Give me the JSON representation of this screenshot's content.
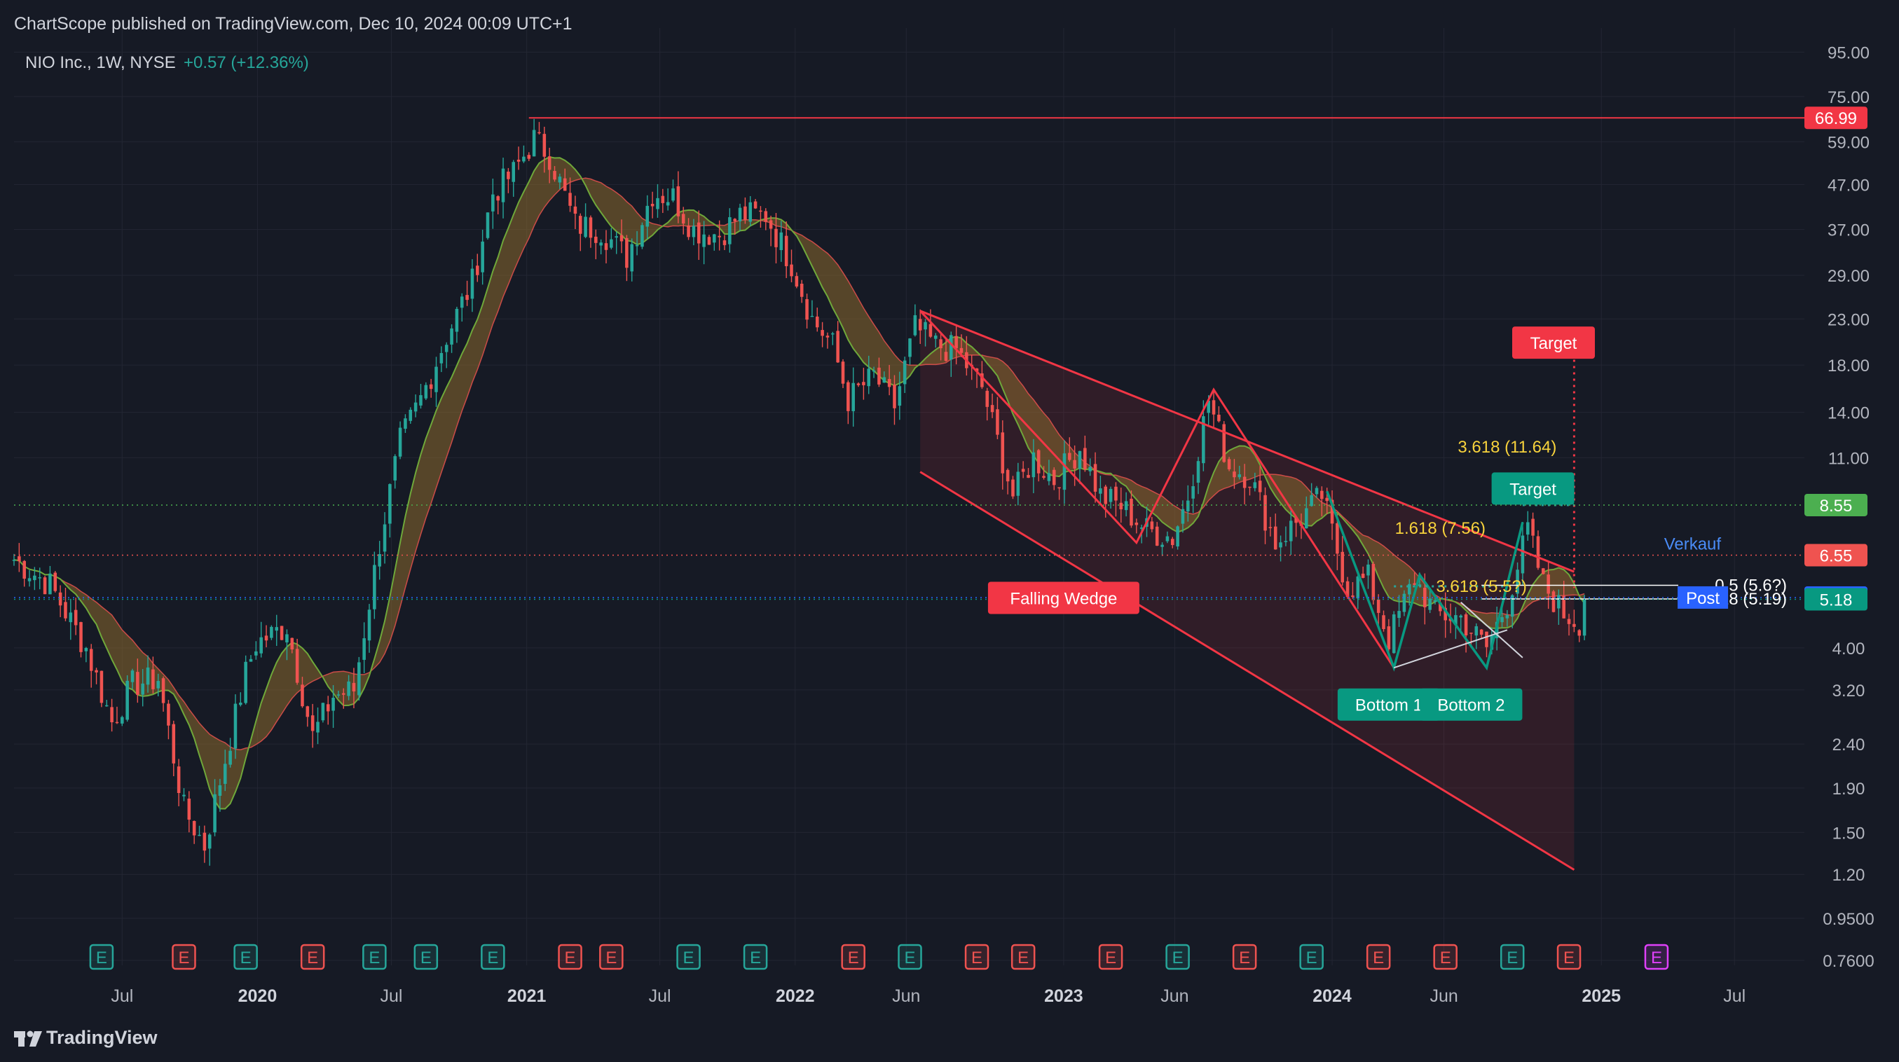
{
  "header": {
    "publisher": "ChartScope published on TradingView.com, Dec 10, 2024 00:09 UTC+1",
    "symbol": "NIO Inc., 1W, NYSE",
    "change": "+0.57 (+12.36%)"
  },
  "footer": {
    "brand": "TradingView"
  },
  "colors": {
    "background": "#161a25",
    "up": "#26a69a",
    "down": "#ef5350",
    "wedge": "#f23645",
    "green_label": "#089981",
    "fib_yellow": "#f7d23c",
    "blue": "#2962ff",
    "grid": "#232633"
  },
  "chart_data": {
    "type": "candlestick",
    "x_axis": {
      "tick_labels": [
        "Jul",
        "2020",
        "Jul",
        "2021",
        "Jul",
        "2022",
        "Jun",
        "2023",
        "Jun",
        "2024",
        "Jun",
        "2025",
        "Jul"
      ],
      "tick_dates": [
        "2019-07-01",
        "2020-01-01",
        "2020-07-01",
        "2021-01-01",
        "2021-07-01",
        "2022-01-01",
        "2022-06-01",
        "2023-01-01",
        "2023-06-01",
        "2024-01-01",
        "2024-06-01",
        "2025-01-01",
        "2025-07-01"
      ],
      "range": [
        "2019-02-04",
        "2025-09-15"
      ]
    },
    "y_axis": {
      "scale": "log",
      "ylim": [
        0.74,
        108
      ],
      "tick_labels": [
        "95.00",
        "75.00",
        "59.00",
        "47.00",
        "37.00",
        "29.00",
        "23.00",
        "18.00",
        "14.00",
        "11.00",
        "4.00",
        "3.20",
        "2.40",
        "1.90",
        "1.50",
        "1.20",
        "0.9500",
        "0.7600"
      ]
    },
    "price_series": {
      "name": "NIO Inc., 1W, NYSE",
      "anchors": [
        [
          "2019-02-04",
          6.4
        ],
        [
          "2019-03-25",
          5.6
        ],
        [
          "2019-05-13",
          4.0
        ],
        [
          "2019-06-17",
          2.7
        ],
        [
          "2019-07-15",
          3.3
        ],
        [
          "2019-08-19",
          3.4
        ],
        [
          "2019-09-23",
          1.7
        ],
        [
          "2019-10-21",
          1.4
        ],
        [
          "2019-12-16",
          3.5
        ],
        [
          "2019-12-30",
          4.1
        ],
        [
          "2020-02-10",
          4.5
        ],
        [
          "2020-03-16",
          2.5
        ],
        [
          "2020-04-13",
          3.1
        ],
        [
          "2020-05-11",
          3.2
        ],
        [
          "2020-06-15",
          7.0
        ],
        [
          "2020-07-13",
          12.0
        ],
        [
          "2020-08-10",
          15.0
        ],
        [
          "2020-09-14",
          21.0
        ],
        [
          "2020-10-19",
          28.0
        ],
        [
          "2020-11-16",
          45.0
        ],
        [
          "2020-12-14",
          50.0
        ],
        [
          "2021-01-11",
          60.0
        ],
        [
          "2021-02-01",
          55.0
        ],
        [
          "2021-03-08",
          38.0
        ],
        [
          "2021-04-12",
          37.0
        ],
        [
          "2021-05-17",
          32.0
        ],
        [
          "2021-06-21",
          45.0
        ],
        [
          "2021-07-19",
          44.0
        ],
        [
          "2021-08-16",
          37.0
        ],
        [
          "2021-09-20",
          36.0
        ],
        [
          "2021-10-18",
          40.0
        ],
        [
          "2021-11-22",
          40.0
        ],
        [
          "2021-12-27",
          31.0
        ],
        [
          "2022-01-24",
          23.0
        ],
        [
          "2022-02-21",
          20.0
        ],
        [
          "2022-03-14",
          15.0
        ],
        [
          "2022-04-18",
          17.0
        ],
        [
          "2022-05-16",
          14.5
        ],
        [
          "2022-06-13",
          22.0
        ],
        [
          "2022-07-11",
          20.0
        ],
        [
          "2022-08-08",
          19.5
        ],
        [
          "2022-09-12",
          16.0
        ],
        [
          "2022-10-24",
          9.0
        ],
        [
          "2022-11-21",
          11.0
        ],
        [
          "2022-12-19",
          9.8
        ],
        [
          "2023-01-23",
          11.6
        ],
        [
          "2023-02-20",
          9.0
        ],
        [
          "2023-03-20",
          8.5
        ],
        [
          "2023-04-24",
          7.5
        ],
        [
          "2023-05-29",
          7.2
        ],
        [
          "2023-06-19",
          9.0
        ],
        [
          "2023-07-17",
          15.0
        ],
        [
          "2023-08-14",
          10.5
        ],
        [
          "2023-09-11",
          10.0
        ],
        [
          "2023-10-16",
          7.0
        ],
        [
          "2023-11-20",
          8.0
        ],
        [
          "2023-12-18",
          9.0
        ],
        [
          "2024-01-22",
          5.5
        ],
        [
          "2024-02-19",
          5.8
        ],
        [
          "2024-03-18",
          4.2
        ],
        [
          "2024-04-22",
          5.8
        ],
        [
          "2024-05-20",
          4.8
        ],
        [
          "2024-06-24",
          4.7
        ],
        [
          "2024-07-29",
          4.0
        ],
        [
          "2024-08-26",
          5.1
        ],
        [
          "2024-09-23",
          7.5
        ],
        [
          "2024-10-14",
          5.6
        ],
        [
          "2024-11-11",
          4.8
        ],
        [
          "2024-12-02",
          4.6
        ],
        [
          "2024-12-09",
          5.18
        ]
      ]
    },
    "moving_averages": [
      {
        "period": 10,
        "color": "#26a69a"
      },
      {
        "period": 20,
        "color": "#ef5350"
      }
    ],
    "levels": [
      {
        "label": "66.99",
        "value": 66.99,
        "color": "#f23645",
        "from": "2021-01-04"
      },
      {
        "label": "8.55",
        "value": 8.55,
        "color": "#4caf50"
      },
      {
        "label": "6.55",
        "value": 6.55,
        "color": "#ef5350"
      },
      {
        "label": "5.23",
        "value": 5.23,
        "color": "#2962ff"
      },
      {
        "label": "5.18",
        "value": 5.18,
        "color": "#089981"
      }
    ],
    "pattern_lines": {
      "wedge_upper": [
        [
          "2022-06-20",
          24.0
        ],
        [
          "2024-11-25",
          6.0
        ]
      ],
      "wedge_lower": [
        [
          "2022-06-20",
          10.2
        ],
        [
          "2024-11-25",
          1.23
        ]
      ],
      "wedge_fill": [
        [
          "2022-06-20",
          24.0
        ],
        [
          "2024-11-25",
          6.0
        ],
        [
          "2024-11-25",
          1.23
        ],
        [
          "2022-06-20",
          10.2
        ]
      ],
      "swing_path": [
        [
          "2022-06-20",
          24.0
        ],
        [
          "2023-04-10",
          7.0
        ],
        [
          "2023-07-24",
          15.8
        ],
        [
          "2024-03-25",
          3.6
        ]
      ],
      "green_swing": [
        [
          "2023-12-25",
          9.2
        ],
        [
          "2024-03-25",
          3.6
        ],
        [
          "2024-04-29",
          5.9
        ],
        [
          "2024-07-29",
          3.6
        ],
        [
          "2024-09-16",
          7.8
        ]
      ],
      "neckline": [
        [
          "2024-03-25",
          3.6
        ],
        [
          "2024-08-26",
          4.4
        ]
      ],
      "neckline2": [
        [
          "2024-06-24",
          5.1
        ],
        [
          "2024-09-16",
          3.8
        ]
      ],
      "green_dotted": [
        [
          "2024-03-25",
          5.55
        ],
        [
          "2024-08-26",
          5.55
        ]
      ],
      "target_up": [
        [
          "2024-11-25",
          19.8
        ],
        [
          "2024-11-25",
          5.5
        ]
      ],
      "target_up_head": [
        [
          "2024-11-25",
          19.8
        ],
        [
          "2024-12-16",
          19.8
        ]
      ],
      "target_mid": [
        [
          "2024-09-16",
          8.55
        ],
        [
          "2024-11-25",
          8.55
        ]
      ],
      "fib_lines": [
        {
          "label": "0.5 (5.6?)",
          "value": 5.58,
          "color": "#ffffff"
        },
        {
          "label": "0.618 (5.19)",
          "value": 5.19,
          "color": "#ffffff"
        }
      ]
    },
    "annotations": [
      {
        "text": "Falling Wedge",
        "date": "2023-01-01",
        "value": 5.2,
        "style": "red"
      },
      {
        "text": "Target",
        "date": "2024-10-28",
        "value": 20.2,
        "style": "red"
      },
      {
        "text": "Target",
        "date": "2024-09-30",
        "value": 9.3,
        "style": "green"
      },
      {
        "text": "Bottom 1",
        "date": "2024-03-18",
        "value": 2.95,
        "style": "green"
      },
      {
        "text": "Bottom 2",
        "date": "2024-07-08",
        "value": 2.95,
        "style": "green"
      },
      {
        "text": "3.618 (11.64)",
        "date": "2024-08-26",
        "value": 11.64,
        "style": "yellow"
      },
      {
        "text": "1.618 (7.56)",
        "date": "2024-05-27",
        "value": 7.56,
        "style": "yellow"
      },
      {
        "text": "3.618 (5.5?)",
        "date": "2024-07-22",
        "value": 5.55,
        "style": "yellow"
      },
      {
        "text": "Verkauf",
        "date": "2025-05-05",
        "value": 6.95,
        "style": "blue-text"
      },
      {
        "text": "Post",
        "date": "2025-05-19",
        "value": 5.23,
        "style": "blue-box"
      }
    ],
    "earnings_markers": [
      {
        "date": "2019-06-03",
        "kind": "green"
      },
      {
        "date": "2019-09-23",
        "kind": "red"
      },
      {
        "date": "2019-12-16",
        "kind": "green"
      },
      {
        "date": "2020-03-16",
        "kind": "red"
      },
      {
        "date": "2020-06-08",
        "kind": "green"
      },
      {
        "date": "2020-08-17",
        "kind": "green"
      },
      {
        "date": "2020-11-16",
        "kind": "green"
      },
      {
        "date": "2021-03-01",
        "kind": "red"
      },
      {
        "date": "2021-04-26",
        "kind": "red"
      },
      {
        "date": "2021-08-09",
        "kind": "green"
      },
      {
        "date": "2021-11-08",
        "kind": "green"
      },
      {
        "date": "2022-03-21",
        "kind": "red"
      },
      {
        "date": "2022-06-06",
        "kind": "green"
      },
      {
        "date": "2022-09-05",
        "kind": "red"
      },
      {
        "date": "2022-11-07",
        "kind": "red"
      },
      {
        "date": "2023-03-06",
        "kind": "red"
      },
      {
        "date": "2023-06-05",
        "kind": "green"
      },
      {
        "date": "2023-09-04",
        "kind": "red"
      },
      {
        "date": "2023-12-04",
        "kind": "green"
      },
      {
        "date": "2024-03-04",
        "kind": "red"
      },
      {
        "date": "2024-06-03",
        "kind": "red"
      },
      {
        "date": "2024-09-02",
        "kind": "green"
      },
      {
        "date": "2024-11-18",
        "kind": "red"
      },
      {
        "date": "2025-03-17",
        "kind": "purple"
      }
    ],
    "earnings_icon_letter": "E",
    "grid": true,
    "legend": "top-left"
  }
}
